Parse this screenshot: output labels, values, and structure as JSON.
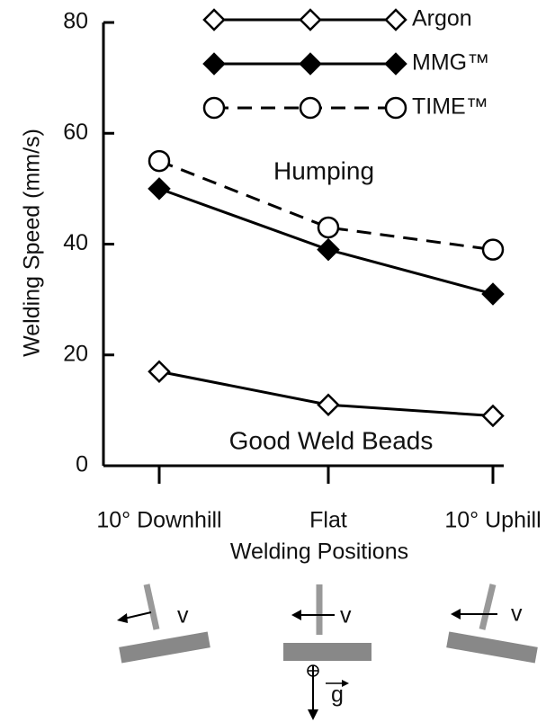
{
  "chart_data": {
    "type": "line",
    "x_label": "Welding Positions",
    "y_label": "Welding Speed (mm/s)",
    "categories": [
      "10° Downhill",
      "Flat",
      "10° Uphill"
    ],
    "series": [
      {
        "name": "Argon",
        "color": "#000000",
        "marker": "diamond-open",
        "dashed": false,
        "values": [
          17,
          11,
          9
        ]
      },
      {
        "name": "MMG™",
        "color": "#000000",
        "marker": "diamond-filled",
        "dashed": false,
        "values": [
          50,
          39,
          31
        ]
      },
      {
        "name": "TIME™",
        "color": "#000000",
        "marker": "circle-open",
        "dashed": true,
        "values": [
          55,
          43,
          39
        ]
      }
    ],
    "ylim": [
      0,
      80
    ],
    "yticks": [
      0,
      20,
      40,
      60,
      80
    ],
    "annotations": [
      "Humping",
      "Good Weld Beads"
    ],
    "diagram_labels": [
      "v",
      "v",
      "v",
      "g"
    ],
    "legend": "top-right"
  }
}
